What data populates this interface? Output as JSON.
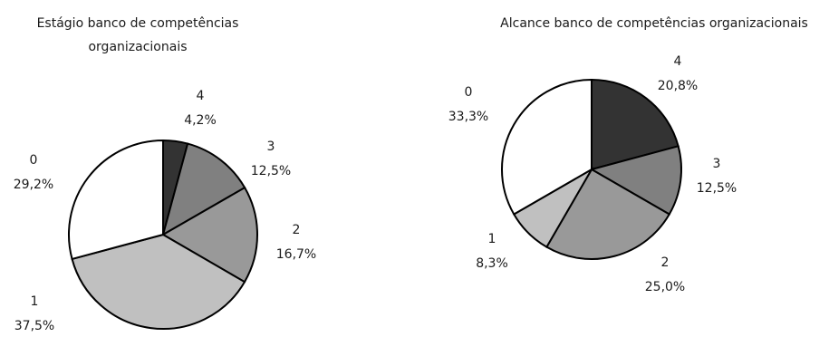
{
  "chart_data": [
    {
      "type": "pie",
      "title": "Estágio banco de competências organizacionais",
      "title_lines": [
        "Estágio banco de competências",
        "organizacionais"
      ],
      "slices": [
        {
          "category": "4",
          "value": 4.2,
          "label": "4,2%",
          "color": "#333333"
        },
        {
          "category": "3",
          "value": 12.5,
          "label": "12,5%",
          "color": "#808080"
        },
        {
          "category": "2",
          "value": 16.7,
          "label": "16,7%",
          "color": "#999999"
        },
        {
          "category": "1",
          "value": 37.5,
          "label": "37,5%",
          "color": "#c0c0c0"
        },
        {
          "category": "0",
          "value": 29.2,
          "label": "29,2%",
          "color": "#ffffff"
        }
      ]
    },
    {
      "type": "pie",
      "title": "Alcance banco de competências organizacionais",
      "title_lines": [
        "Alcance banco de competências organizacionais"
      ],
      "slices": [
        {
          "category": "4",
          "value": 20.8,
          "label": "20,8%",
          "color": "#333333"
        },
        {
          "category": "3",
          "value": 12.5,
          "label": "12,5%",
          "color": "#808080"
        },
        {
          "category": "2",
          "value": 25.0,
          "label": "25,0%",
          "color": "#999999"
        },
        {
          "category": "1",
          "value": 8.3,
          "label": "8,3%",
          "color": "#c0c0c0"
        },
        {
          "category": "0",
          "value": 33.3,
          "label": "33,3%",
          "color": "#ffffff"
        }
      ]
    }
  ]
}
